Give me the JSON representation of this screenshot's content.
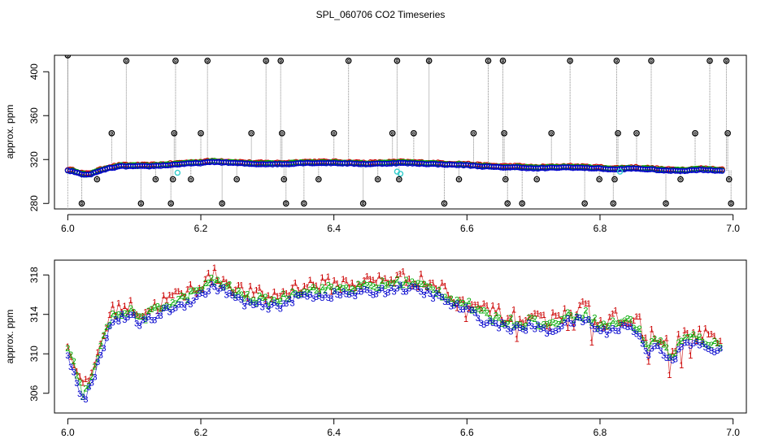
{
  "figure": {
    "title": "SPL_060706  CO2 Timeseries"
  },
  "chart_data": [
    {
      "type": "scatter",
      "name": "overview",
      "ylabel": "approx. ppm",
      "xlabel": "",
      "xlim": [
        5.98,
        7.02
      ],
      "ylim": [
        275,
        415
      ],
      "x_ticks": [
        6.0,
        6.2,
        6.4,
        6.6,
        6.8,
        7.0
      ],
      "x_tick_labels": [
        "6.0",
        "6.2",
        "6.4",
        "6.6",
        "6.8",
        "7.0"
      ],
      "y_ticks": [
        280,
        320,
        360,
        400
      ],
      "y_tick_labels": [
        "280",
        "320",
        "360",
        "400"
      ],
      "series_colors": {
        "1": "#cc0000",
        "2": "#00aa00",
        "3": "#0000cc",
        "aux": "#33cccc",
        "spike": "#000000"
      },
      "baseline": [
        [
          6.0,
          310
        ],
        [
          6.01,
          309
        ],
        [
          6.02,
          307
        ],
        [
          6.03,
          306
        ],
        [
          6.04,
          308
        ],
        [
          6.06,
          312
        ],
        [
          6.08,
          314
        ],
        [
          6.1,
          314
        ],
        [
          6.12,
          314
        ],
        [
          6.15,
          315
        ],
        [
          6.17,
          316
        ],
        [
          6.2,
          317
        ],
        [
          6.22,
          318
        ],
        [
          6.25,
          317
        ],
        [
          6.28,
          316
        ],
        [
          6.3,
          316
        ],
        [
          6.33,
          316
        ],
        [
          6.35,
          317
        ],
        [
          6.4,
          317
        ],
        [
          6.45,
          316
        ],
        [
          6.5,
          317
        ],
        [
          6.55,
          316
        ],
        [
          6.6,
          315
        ],
        [
          6.62,
          314
        ],
        [
          6.65,
          313
        ],
        [
          6.68,
          313
        ],
        [
          6.7,
          312
        ],
        [
          6.75,
          313
        ],
        [
          6.8,
          312
        ],
        [
          6.82,
          311
        ],
        [
          6.85,
          312
        ],
        [
          6.88,
          311
        ],
        [
          6.9,
          310
        ],
        [
          6.93,
          310
        ],
        [
          6.95,
          311
        ],
        [
          6.98,
          310
        ]
      ],
      "spikes": [
        {
          "x": 6.0,
          "y": 415
        },
        {
          "x": 6.021,
          "y": 280
        },
        {
          "x": 6.044,
          "y": 302
        },
        {
          "x": 6.066,
          "y": 344
        },
        {
          "x": 6.088,
          "y": 410
        },
        {
          "x": 6.11,
          "y": 280
        },
        {
          "x": 6.132,
          "y": 302
        },
        {
          "x": 6.155,
          "y": 280
        },
        {
          "x": 6.158,
          "y": 302
        },
        {
          "x": 6.16,
          "y": 344
        },
        {
          "x": 6.162,
          "y": 410
        },
        {
          "x": 6.185,
          "y": 302
        },
        {
          "x": 6.2,
          "y": 344
        },
        {
          "x": 6.21,
          "y": 410
        },
        {
          "x": 6.232,
          "y": 280
        },
        {
          "x": 6.254,
          "y": 302
        },
        {
          "x": 6.276,
          "y": 344
        },
        {
          "x": 6.298,
          "y": 410
        },
        {
          "x": 6.32,
          "y": 410
        },
        {
          "x": 6.322,
          "y": 344
        },
        {
          "x": 6.325,
          "y": 302
        },
        {
          "x": 6.328,
          "y": 280
        },
        {
          "x": 6.355,
          "y": 280
        },
        {
          "x": 6.377,
          "y": 302
        },
        {
          "x": 6.4,
          "y": 344
        },
        {
          "x": 6.422,
          "y": 410
        },
        {
          "x": 6.444,
          "y": 280
        },
        {
          "x": 6.466,
          "y": 302
        },
        {
          "x": 6.488,
          "y": 344
        },
        {
          "x": 6.495,
          "y": 410
        },
        {
          "x": 6.498,
          "y": 302
        },
        {
          "x": 6.52,
          "y": 344
        },
        {
          "x": 6.543,
          "y": 410
        },
        {
          "x": 6.566,
          "y": 280
        },
        {
          "x": 6.588,
          "y": 302
        },
        {
          "x": 6.61,
          "y": 344
        },
        {
          "x": 6.632,
          "y": 410
        },
        {
          "x": 6.654,
          "y": 410
        },
        {
          "x": 6.656,
          "y": 344
        },
        {
          "x": 6.658,
          "y": 302
        },
        {
          "x": 6.661,
          "y": 280
        },
        {
          "x": 6.683,
          "y": 280
        },
        {
          "x": 6.705,
          "y": 302
        },
        {
          "x": 6.727,
          "y": 344
        },
        {
          "x": 6.755,
          "y": 410
        },
        {
          "x": 6.777,
          "y": 280
        },
        {
          "x": 6.799,
          "y": 302
        },
        {
          "x": 6.82,
          "y": 280
        },
        {
          "x": 6.822,
          "y": 302
        },
        {
          "x": 6.825,
          "y": 410
        },
        {
          "x": 6.827,
          "y": 344
        },
        {
          "x": 6.855,
          "y": 344
        },
        {
          "x": 6.877,
          "y": 410
        },
        {
          "x": 6.899,
          "y": 280
        },
        {
          "x": 6.921,
          "y": 302
        },
        {
          "x": 6.943,
          "y": 344
        },
        {
          "x": 6.965,
          "y": 410
        },
        {
          "x": 6.99,
          "y": 410
        },
        {
          "x": 6.992,
          "y": 344
        },
        {
          "x": 6.994,
          "y": 302
        },
        {
          "x": 6.997,
          "y": 280
        }
      ],
      "aux_points": [
        {
          "x": 6.165,
          "y": 308
        },
        {
          "x": 6.495,
          "y": 309
        },
        {
          "x": 6.5,
          "y": 307
        },
        {
          "x": 6.83,
          "y": 309
        }
      ]
    },
    {
      "type": "scatter",
      "name": "detail",
      "ylabel": "approx. ppm",
      "xlabel": "",
      "xlim": [
        5.98,
        7.02
      ],
      "ylim": [
        304,
        319.5
      ],
      "x_ticks": [
        6.0,
        6.2,
        6.4,
        6.6,
        6.8,
        7.0
      ],
      "x_tick_labels": [
        "6.0",
        "6.2",
        "6.4",
        "6.6",
        "6.8",
        "7.0"
      ],
      "y_ticks": [
        306,
        310,
        314,
        318
      ],
      "y_tick_labels": [
        "306",
        "310",
        "314",
        "318"
      ],
      "series": [
        {
          "name": "1",
          "marker": "1",
          "color": "#cc0000",
          "offset": 0.8,
          "noise": 1.6
        },
        {
          "name": "2",
          "marker": "2",
          "color": "#00aa00",
          "offset": 0.3,
          "noise": 0.9
        },
        {
          "name": "3",
          "marker": "3",
          "color": "#0000cc",
          "offset": -0.3,
          "noise": 0.8
        }
      ],
      "x_range": [
        6.0,
        6.985
      ],
      "baseline": [
        [
          6.0,
          310
        ],
        [
          6.01,
          308.5
        ],
        [
          6.02,
          306
        ],
        [
          6.025,
          305.5
        ],
        [
          6.03,
          306.5
        ],
        [
          6.04,
          308
        ],
        [
          6.05,
          310.5
        ],
        [
          6.06,
          312.5
        ],
        [
          6.07,
          313.8
        ],
        [
          6.08,
          314
        ],
        [
          6.1,
          313.9
        ],
        [
          6.11,
          313.3
        ],
        [
          6.13,
          314
        ],
        [
          6.15,
          314.8
        ],
        [
          6.17,
          315.2
        ],
        [
          6.2,
          316.3
        ],
        [
          6.22,
          317.2
        ],
        [
          6.24,
          316.5
        ],
        [
          6.26,
          315.6
        ],
        [
          6.28,
          315.3
        ],
        [
          6.3,
          315
        ],
        [
          6.32,
          315.3
        ],
        [
          6.35,
          316.2
        ],
        [
          6.4,
          316.3
        ],
        [
          6.45,
          316.5
        ],
        [
          6.5,
          317
        ],
        [
          6.52,
          316.8
        ],
        [
          6.55,
          316.3
        ],
        [
          6.58,
          315.2
        ],
        [
          6.6,
          314.8
        ],
        [
          6.62,
          313.8
        ],
        [
          6.65,
          313.2
        ],
        [
          6.68,
          312.8
        ],
        [
          6.7,
          313.2
        ],
        [
          6.72,
          312.5
        ],
        [
          6.75,
          313.5
        ],
        [
          6.78,
          313.8
        ],
        [
          6.8,
          312.5
        ],
        [
          6.82,
          312.8
        ],
        [
          6.84,
          313.2
        ],
        [
          6.86,
          312.2
        ],
        [
          6.87,
          310
        ],
        [
          6.88,
          311.5
        ],
        [
          6.9,
          310.2
        ],
        [
          6.91,
          309.2
        ],
        [
          6.92,
          311
        ],
        [
          6.94,
          311.4
        ],
        [
          6.96,
          311
        ],
        [
          6.98,
          310.5
        ]
      ]
    }
  ]
}
